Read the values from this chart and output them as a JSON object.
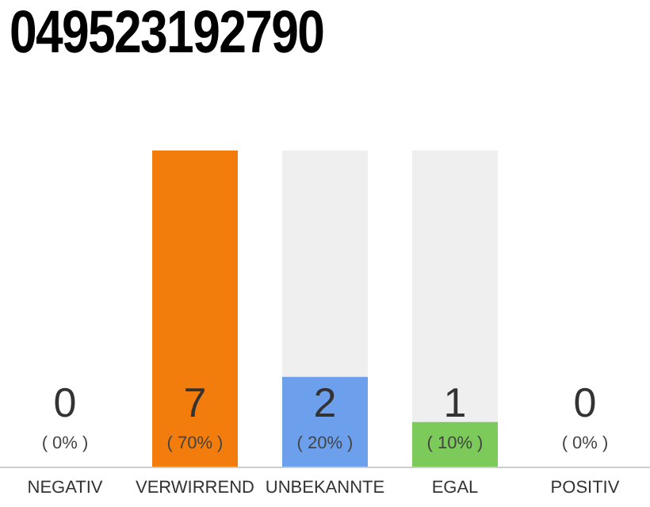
{
  "chart_data": {
    "type": "bar",
    "title": "049523192790",
    "categories": [
      "NEGATIV",
      "VERWIRREND",
      "UNBEKANNTE",
      "EGAL",
      "POSITIV"
    ],
    "values": [
      0,
      7,
      2,
      1,
      0
    ],
    "colors": [
      "#cccccc",
      "#f27d0c",
      "#6ca0ec",
      "#7ccb5a",
      "#cccccc"
    ],
    "data_labels": true,
    "annotations": [
      "( 0% )",
      "( 70% )",
      "( 20% )",
      "( 10% )",
      "( 0% )"
    ],
    "grid": false,
    "legend": false
  }
}
